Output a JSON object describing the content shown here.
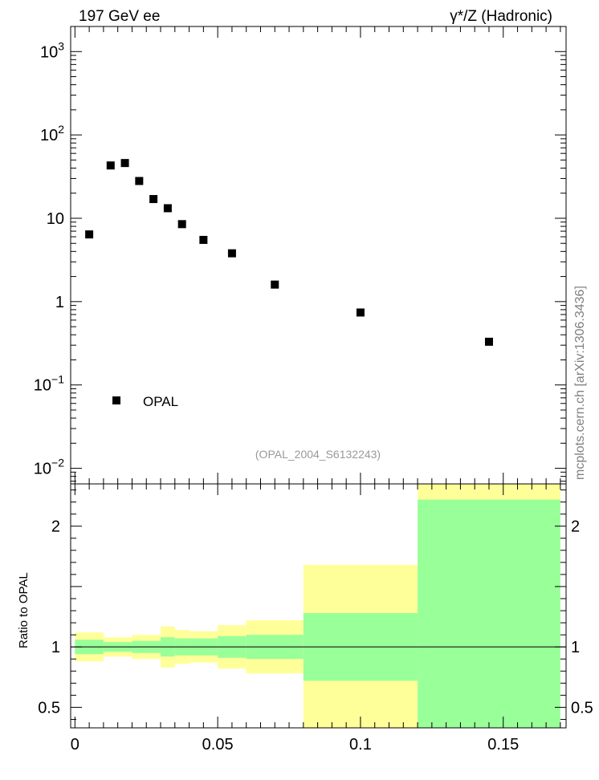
{
  "header": {
    "left_title": "197 GeV ee",
    "right_title": "γ*/Z (Hadronic)"
  },
  "side_label": "mcplots.cern.ch [arXiv:1306.3436]",
  "analysis_tag": "(OPAL_2004_S6132243)",
  "colors": {
    "data_marker": "#000000",
    "band_inner": "#99ff99",
    "band_outer": "#ffff99",
    "axis": "#000000",
    "tag_text": "#999999",
    "side_text": "#808080"
  },
  "chart_data": [
    {
      "type": "scatter",
      "panel": "main",
      "yscale": "log",
      "xlim": [
        -0.0015,
        0.172
      ],
      "ylim": [
        0.0065,
        2000
      ],
      "ytick_values": [
        0.01,
        0.1,
        1,
        10,
        100,
        1000
      ],
      "ytick_labels": [
        {
          "base": "10",
          "exp": "−2"
        },
        {
          "base": "10",
          "exp": "−1"
        },
        {
          "base": "1",
          "exp": ""
        },
        {
          "base": "10",
          "exp": ""
        },
        {
          "base": "10",
          "exp": "2"
        },
        {
          "base": "10",
          "exp": "3"
        }
      ],
      "legend": {
        "label": "OPAL",
        "placement": "bottom-left"
      },
      "series": [
        {
          "name": "OPAL",
          "x": [
            0.005,
            0.0125,
            0.0175,
            0.0225,
            0.0275,
            0.0325,
            0.0375,
            0.045,
            0.055,
            0.07,
            0.1,
            0.145
          ],
          "y": [
            6.4,
            43,
            46,
            28,
            17,
            13.2,
            8.5,
            5.5,
            3.8,
            1.6,
            0.74,
            0.33
          ]
        }
      ]
    },
    {
      "type": "area",
      "panel": "ratio",
      "ylabel": "Ratio to OPAL",
      "xlim": [
        -0.0015,
        0.172
      ],
      "ylim": [
        0.33,
        2.35
      ],
      "reference_line": 1,
      "ytick_values": [
        0.5,
        1,
        2
      ],
      "ytick_labels": [
        "0.5",
        "1",
        "2"
      ],
      "xtick_values": [
        0,
        0.05,
        0.1,
        0.15
      ],
      "xtick_labels": [
        "0",
        "0.05",
        "0.1",
        "0.15"
      ],
      "bins": [
        {
          "lo": 0.0,
          "hi": 0.01,
          "inner": [
            0.94,
            1.06
          ],
          "outer": [
            0.88,
            1.12
          ]
        },
        {
          "lo": 0.01,
          "hi": 0.02,
          "inner": [
            0.96,
            1.04
          ],
          "outer": [
            0.92,
            1.08
          ]
        },
        {
          "lo": 0.02,
          "hi": 0.03,
          "inner": [
            0.95,
            1.05
          ],
          "outer": [
            0.9,
            1.1
          ]
        },
        {
          "lo": 0.03,
          "hi": 0.035,
          "inner": [
            0.92,
            1.08
          ],
          "outer": [
            0.83,
            1.17
          ]
        },
        {
          "lo": 0.035,
          "hi": 0.04,
          "inner": [
            0.93,
            1.07
          ],
          "outer": [
            0.86,
            1.14
          ]
        },
        {
          "lo": 0.04,
          "hi": 0.05,
          "inner": [
            0.93,
            1.07
          ],
          "outer": [
            0.87,
            1.13
          ]
        },
        {
          "lo": 0.05,
          "hi": 0.06,
          "inner": [
            0.91,
            1.09
          ],
          "outer": [
            0.82,
            1.18
          ]
        },
        {
          "lo": 0.06,
          "hi": 0.08,
          "inner": [
            0.9,
            1.1
          ],
          "outer": [
            0.78,
            1.22
          ]
        },
        {
          "lo": 0.08,
          "hi": 0.12,
          "inner": [
            0.72,
            1.28
          ],
          "outer": [
            0.33,
            1.68
          ]
        },
        {
          "lo": 0.12,
          "hi": 0.17,
          "inner": [
            0.33,
            2.22
          ],
          "outer": [
            0.33,
            2.35
          ]
        }
      ]
    }
  ]
}
